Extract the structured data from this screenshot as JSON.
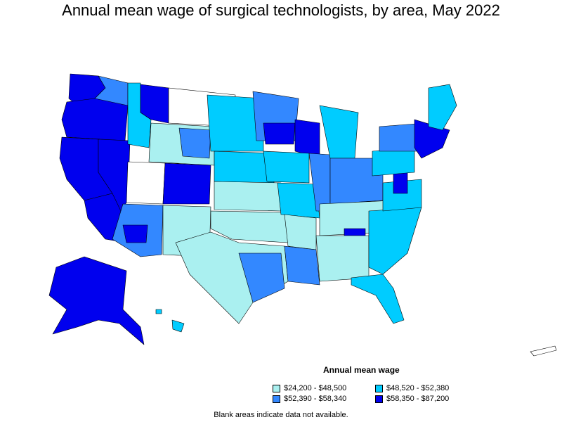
{
  "title": "Annual mean wage of surgical technologists, by area, May 2022",
  "legend": {
    "title": "Annual mean wage",
    "items": [
      {
        "label": "$24,200 - $48,500",
        "color": "#aaf0f0"
      },
      {
        "label": "$48,520 - $52,380",
        "color": "#00ccff"
      },
      {
        "label": "$52,390 - $58,340",
        "color": "#3388ff"
      },
      {
        "label": "$58,350 - $87,200",
        "color": "#0000ee"
      }
    ]
  },
  "note": "Blank areas indicate data not available."
}
